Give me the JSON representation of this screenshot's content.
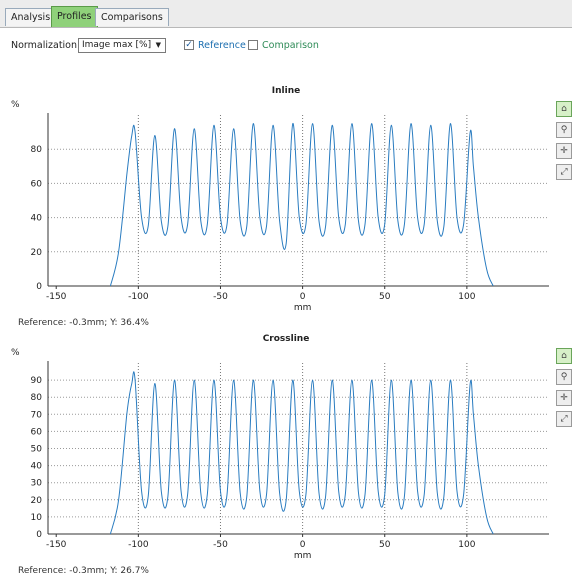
{
  "tabs": [
    "Analysis",
    "Profiles",
    "Comparisons"
  ],
  "controls": {
    "normalization_label": "Normalization:",
    "normalization_value": "Image max [%]",
    "reference_label": "Reference",
    "comparison_label": "Comparison",
    "reference_checked": true,
    "comparison_checked": false
  },
  "charts": {
    "inline": {
      "title": "Inline",
      "ylabel": "%",
      "xlabel": "mm",
      "status": "Reference: -0.3mm; Y: 36.4%"
    },
    "crossline": {
      "title": "Crossline",
      "ylabel": "%",
      "xlabel": "mm",
      "status": "Reference: -0.3mm; Y: 26.7%"
    }
  },
  "colors": {
    "line": "#2a7cc0",
    "active_tab": "#8fd17a",
    "reference_text": "#1d6fb0",
    "comparison_text": "#2e8b57"
  },
  "side_icons": [
    "home-icon",
    "zoom-icon",
    "pan-icon",
    "expand-icon"
  ],
  "chart_data": [
    {
      "type": "line",
      "title": "Inline",
      "xlabel": "mm",
      "ylabel": "%",
      "xlim": [
        -155,
        150
      ],
      "ylim": [
        0,
        100
      ],
      "x_ticks": [
        -150,
        -100,
        -50,
        0,
        50,
        100
      ],
      "y_ticks": [
        0,
        20,
        40,
        60,
        80
      ],
      "vertical_gridlines": [
        -100,
        -50,
        0,
        50,
        100
      ],
      "series": [
        {
          "x": [
            -117,
            -112,
            -107,
            -104,
            -102,
            -98,
            -94,
            -90,
            -86,
            -82,
            -78,
            -74,
            -70,
            -66,
            -62,
            -58,
            -54,
            -50,
            -46,
            -42,
            -38,
            -34,
            -30,
            -26,
            -22,
            -18,
            -14,
            -10,
            -6,
            -2,
            2,
            6,
            10,
            14,
            18,
            22,
            26,
            30,
            34,
            38,
            42,
            46,
            50,
            54,
            58,
            62,
            66,
            70,
            74,
            78,
            82,
            86,
            90,
            94,
            98,
            102,
            104,
            107,
            112,
            116
          ],
          "y": [
            0,
            20,
            65,
            88,
            90,
            40,
            35,
            88,
            38,
            35,
            92,
            40,
            36,
            92,
            38,
            36,
            94,
            40,
            36,
            92,
            38,
            35,
            95,
            40,
            35,
            94,
            38,
            25,
            95,
            40,
            36,
            95,
            38,
            35,
            94,
            40,
            36,
            95,
            38,
            36,
            95,
            40,
            36,
            94,
            38,
            36,
            95,
            40,
            36,
            94,
            38,
            35,
            95,
            40,
            36,
            90,
            70,
            40,
            10,
            0
          ]
        }
      ]
    },
    {
      "type": "line",
      "title": "Crossline",
      "xlabel": "mm",
      "ylabel": "%",
      "xlim": [
        -155,
        150
      ],
      "ylim": [
        0,
        100
      ],
      "x_ticks": [
        -150,
        -100,
        -50,
        0,
        50,
        100
      ],
      "y_ticks": [
        0,
        10,
        20,
        30,
        40,
        50,
        60,
        70,
        80,
        90
      ],
      "vertical_gridlines": [
        -100,
        -50,
        0,
        50,
        100
      ],
      "series": [
        {
          "x": [
            -117,
            -112,
            -107,
            -104,
            -102,
            -98,
            -94,
            -90,
            -86,
            -82,
            -78,
            -74,
            -70,
            -66,
            -62,
            -58,
            -54,
            -50,
            -46,
            -42,
            -38,
            -34,
            -30,
            -26,
            -22,
            -18,
            -14,
            -10,
            -6,
            -2,
            2,
            6,
            10,
            14,
            18,
            22,
            26,
            30,
            34,
            38,
            42,
            46,
            50,
            54,
            58,
            62,
            66,
            70,
            74,
            78,
            82,
            86,
            90,
            94,
            98,
            102,
            104,
            107,
            112,
            116
          ],
          "y": [
            0,
            20,
            70,
            88,
            90,
            25,
            22,
            88,
            25,
            22,
            90,
            25,
            23,
            90,
            24,
            23,
            90,
            25,
            23,
            90,
            24,
            22,
            90,
            25,
            23,
            90,
            24,
            20,
            90,
            25,
            23,
            90,
            24,
            22,
            90,
            25,
            23,
            90,
            24,
            23,
            90,
            25,
            23,
            90,
            24,
            22,
            90,
            25,
            23,
            90,
            24,
            22,
            90,
            25,
            23,
            88,
            70,
            40,
            10,
            0
          ]
        }
      ]
    }
  ]
}
